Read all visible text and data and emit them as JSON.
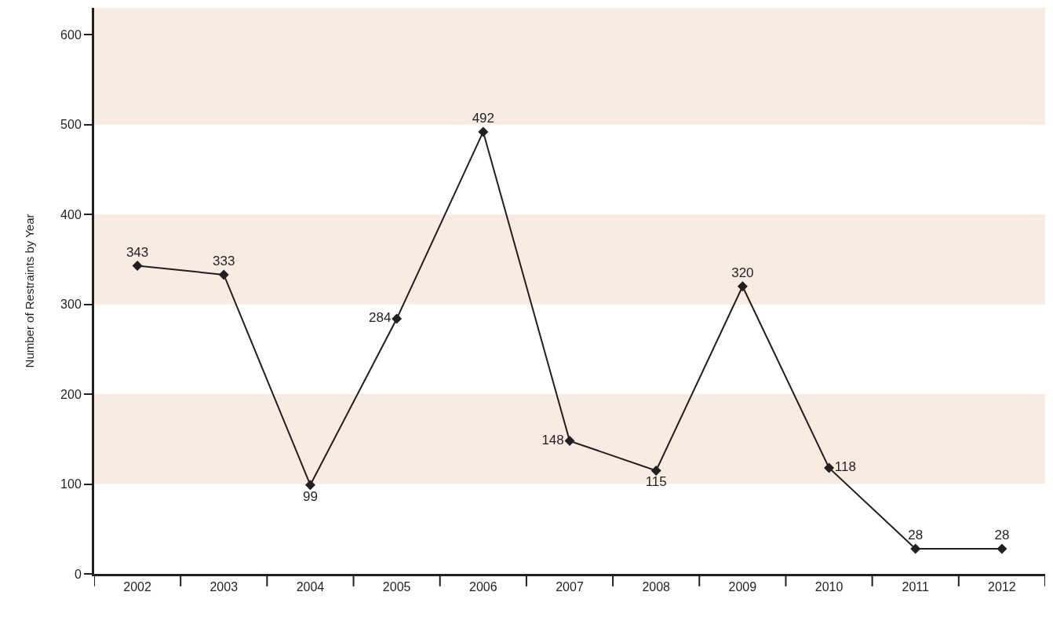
{
  "chart_data": {
    "type": "line",
    "ylabel": "Number of Restraints by Year",
    "categories": [
      "2002",
      "2003",
      "2004",
      "2005",
      "2006",
      "2007",
      "2008",
      "2009",
      "2010",
      "2011",
      "2012"
    ],
    "series": [
      {
        "color": "#231f20",
        "values": [
          343,
          333,
          99,
          284,
          492,
          148,
          115,
          320,
          118,
          28,
          28
        ]
      }
    ],
    "ylim": [
      0,
      630
    ],
    "yticks": [
      0,
      100,
      200,
      300,
      400,
      500,
      600
    ],
    "bands": [
      {
        "axis": "y",
        "from": 100,
        "to": 200,
        "color": "#f8ece2"
      },
      {
        "axis": "y",
        "from": 300,
        "to": 400,
        "color": "#f8ece2"
      },
      {
        "axis": "y",
        "from": 500,
        "to": 630,
        "color": "#f8ece2"
      }
    ],
    "data_labels": true,
    "marker": "diamond",
    "line_style": "solid",
    "grid": false,
    "legend": false
  }
}
